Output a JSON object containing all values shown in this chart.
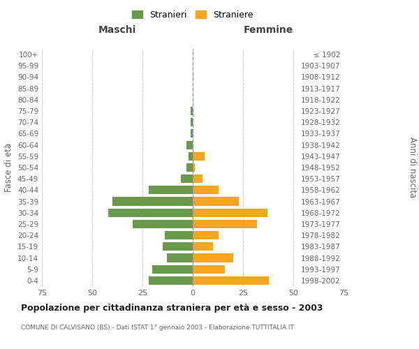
{
  "age_groups": [
    "0-4",
    "5-9",
    "10-14",
    "15-19",
    "20-24",
    "25-29",
    "30-34",
    "35-39",
    "40-44",
    "45-49",
    "50-54",
    "55-59",
    "60-64",
    "65-69",
    "70-74",
    "75-79",
    "80-84",
    "85-89",
    "90-94",
    "95-99",
    "100+"
  ],
  "birth_years": [
    "1998-2002",
    "1993-1997",
    "1988-1992",
    "1983-1987",
    "1978-1982",
    "1973-1977",
    "1968-1972",
    "1963-1967",
    "1958-1962",
    "1953-1957",
    "1948-1952",
    "1943-1947",
    "1938-1942",
    "1933-1937",
    "1928-1932",
    "1923-1927",
    "1918-1922",
    "1913-1917",
    "1908-1912",
    "1903-1907",
    "≤ 1902"
  ],
  "males": [
    22,
    20,
    13,
    15,
    14,
    30,
    42,
    40,
    22,
    6,
    3,
    2,
    3,
    1,
    1,
    1,
    0,
    0,
    0,
    0,
    0
  ],
  "females": [
    38,
    16,
    20,
    10,
    13,
    32,
    37,
    23,
    13,
    5,
    1,
    6,
    0,
    0,
    0,
    0,
    0,
    0,
    0,
    0,
    0
  ],
  "male_color": "#6a994e",
  "female_color": "#f4a620",
  "background_color": "#ffffff",
  "grid_color": "#cccccc",
  "title": "Popolazione per cittadinanza straniera per età e sesso - 2003",
  "subtitle": "COMUNE DI CALVISANO (BS) - Dati ISTAT 1° gennaio 2003 - Elaborazione TUTTITALIA.IT",
  "xlabel_left": "Maschi",
  "xlabel_right": "Femmine",
  "ylabel_left": "Fasce di età",
  "ylabel_right": "Anni di nascita",
  "legend_male": "Stranieri",
  "legend_female": "Straniere",
  "xlim": 75
}
